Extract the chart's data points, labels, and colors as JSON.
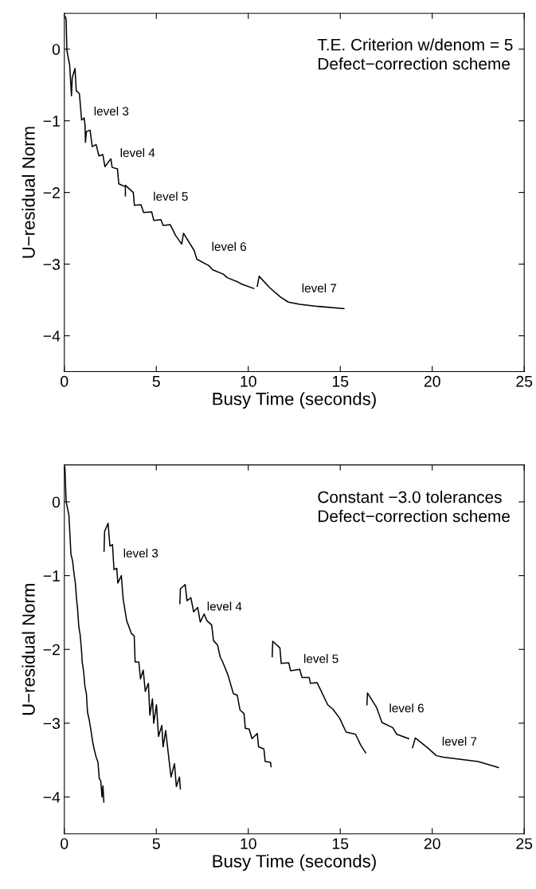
{
  "chart_data": [
    {
      "type": "line",
      "title": "T.E. Criterion w/denom = 5\nDefect−correction scheme",
      "xlabel": "Busy Time (seconds)",
      "ylabel": "U−residual Norm",
      "xlim": [
        0,
        25
      ],
      "ylim": [
        -4.5,
        0.5
      ],
      "xticks": [
        0,
        5,
        10,
        15,
        20,
        25
      ],
      "yticks": [
        -4,
        -3,
        -2,
        -1,
        0
      ],
      "grid": false,
      "legend": false,
      "marker": "none",
      "line_style": "solid",
      "series": [
        {
          "color": "#000000",
          "x": [
            0.07,
            0.1,
            0.14,
            0.29,
            0.39,
            0.43,
            0.58,
            0.65,
            0.82,
            0.94,
            1.08,
            1.13,
            1.15,
            1.2,
            1.4,
            1.52,
            1.73,
            1.88,
            2.09,
            2.21,
            2.53,
            2.6,
            2.89,
            2.96,
            3.32,
            3.32,
            3.32,
            3.75,
            3.81,
            4.17,
            4.31,
            4.75,
            4.86,
            5.25,
            5.37,
            5.76,
            6.05,
            6.38,
            6.48,
            7.06,
            7.2,
            7.85,
            8.07,
            8.64,
            8.86,
            9.44,
            9.65,
            10.3,
            10.4,
            10.49,
            10.59,
            11.17,
            11.75,
            12.18,
            12.8,
            13.8,
            15.2
          ],
          "values": [
            0.45,
            0.4,
            -0.02,
            -0.22,
            -0.65,
            -0.4,
            -0.27,
            -0.58,
            -0.62,
            -0.99,
            -0.96,
            -1.07,
            -1.3,
            -1.15,
            -1.13,
            -1.36,
            -1.33,
            -1.49,
            -1.47,
            -1.64,
            -1.53,
            -1.65,
            -1.67,
            -1.88,
            -1.92,
            -2.05,
            -1.9,
            -2.0,
            -2.18,
            -2.17,
            -2.28,
            -2.27,
            -2.39,
            -2.38,
            -2.46,
            -2.45,
            -2.6,
            -2.72,
            -2.57,
            -2.81,
            -2.93,
            -3.02,
            -3.08,
            -3.14,
            -3.19,
            -3.25,
            -3.28,
            -3.34,
            null,
            -3.31,
            -3.17,
            -3.33,
            -3.46,
            -3.53,
            -3.56,
            -3.59,
            -3.62
          ]
        }
      ],
      "annotations": [
        "level 3",
        "level 4",
        "level 5",
        "level 6",
        "level 7"
      ]
    },
    {
      "type": "line",
      "title": "Constant −3.0 tolerances\nDefect−correction scheme",
      "xlabel": "Busy Time (seconds)",
      "ylabel": "U−residual Norm",
      "xlim": [
        0,
        25
      ],
      "ylim": [
        -4.5,
        0.5
      ],
      "xticks": [
        0,
        5,
        10,
        15,
        20,
        25
      ],
      "yticks": [
        -4,
        -3,
        -2,
        -1,
        0
      ],
      "grid": false,
      "legend": false,
      "marker": "none",
      "line_style": "solid",
      "series": [
        {
          "color": "#000000",
          "x": [
            0.03,
            0.1,
            0.25,
            0.36,
            0.45,
            0.53,
            0.6,
            0.65,
            0.72,
            0.79,
            0.86,
            0.94,
            0.97,
            1.05,
            1.12,
            1.2,
            1.26,
            1.35,
            1.45,
            1.54,
            1.62,
            1.72,
            1.83,
            1.9,
            1.98,
            2.05,
            2.1,
            2.15
          ],
          "values": [
            0.47,
            0.0,
            -0.18,
            -0.71,
            -0.8,
            -0.98,
            -1.1,
            -1.27,
            -1.45,
            -1.7,
            -1.8,
            -2.03,
            -2.17,
            -2.3,
            -2.5,
            -2.6,
            -2.85,
            -2.95,
            -3.1,
            -3.25,
            -3.35,
            -3.45,
            -3.53,
            -3.75,
            -3.78,
            -4.0,
            -3.85,
            -4.07
          ]
        },
        {
          "color": "#000000",
          "x": [
            2.16,
            2.19,
            2.38,
            2.48,
            2.62,
            2.7,
            2.85,
            2.91,
            3.1,
            3.2,
            3.39,
            3.64,
            3.8,
            3.85,
            4.05,
            4.14,
            4.29,
            4.4,
            4.57,
            4.65,
            4.79,
            4.86,
            5.01,
            5.12,
            5.3,
            5.37,
            5.51,
            5.8,
            5.99,
            6.09,
            6.26,
            6.31
          ],
          "values": [
            -0.67,
            -0.4,
            -0.29,
            -0.6,
            -0.58,
            -0.92,
            -0.9,
            -1.1,
            -1.0,
            -1.32,
            -1.61,
            -1.78,
            -1.82,
            -2.17,
            -2.17,
            -2.4,
            -2.28,
            -2.57,
            -2.46,
            -2.89,
            -2.67,
            -3.0,
            -2.75,
            -3.18,
            -3.03,
            -3.32,
            -3.1,
            -3.73,
            -3.55,
            -3.86,
            -3.73,
            -3.89
          ]
        },
        {
          "color": "#000000",
          "x": [
            6.28,
            6.31,
            6.57,
            6.67,
            6.88,
            7.03,
            7.25,
            7.39,
            7.6,
            7.75,
            8.01,
            8.11,
            8.33,
            8.47,
            8.61,
            8.9,
            9.19,
            9.4,
            9.55,
            9.77,
            9.84,
            10.05,
            10.2,
            10.49,
            10.56,
            10.85,
            10.92,
            11.21,
            11.24
          ],
          "values": [
            -1.38,
            -1.18,
            -1.12,
            -1.34,
            -1.3,
            -1.49,
            -1.43,
            -1.63,
            -1.52,
            -1.61,
            -1.67,
            -1.88,
            -1.94,
            -2.1,
            -2.17,
            -2.35,
            -2.6,
            -2.62,
            -2.82,
            -2.87,
            -3.07,
            -3.08,
            -3.21,
            -3.14,
            -3.32,
            -3.35,
            -3.52,
            -3.53,
            -3.59
          ]
        },
        {
          "color": "#000000",
          "x": [
            11.3,
            11.33,
            11.72,
            11.79,
            12.2,
            12.3,
            12.8,
            12.92,
            13.31,
            13.38,
            13.74,
            14.32,
            14.6,
            14.96,
            15.32,
            15.83,
            16.12,
            16.38
          ],
          "values": [
            -2.1,
            -1.89,
            -1.98,
            -2.19,
            -2.18,
            -2.29,
            -2.27,
            -2.38,
            -2.38,
            -2.46,
            -2.45,
            -2.75,
            -2.81,
            -2.93,
            -3.12,
            -3.15,
            -3.3,
            -3.4
          ]
        },
        {
          "color": "#000000",
          "x": [
            16.45,
            16.48,
            16.98,
            17.27,
            17.85,
            18.07,
            18.72
          ],
          "values": [
            -2.75,
            -2.59,
            -2.79,
            -2.99,
            -3.06,
            -3.15,
            -3.21
          ]
        },
        {
          "color": "#000000",
          "x": [
            18.93,
            19.08,
            19.73,
            20.23,
            20.6,
            22.5,
            23.6
          ],
          "values": [
            -3.33,
            -3.2,
            -3.33,
            -3.44,
            -3.46,
            -3.52,
            -3.6
          ]
        }
      ],
      "annotations": [
        "level 3",
        "level 4",
        "level 5",
        "level 6",
        "level 7"
      ]
    }
  ]
}
